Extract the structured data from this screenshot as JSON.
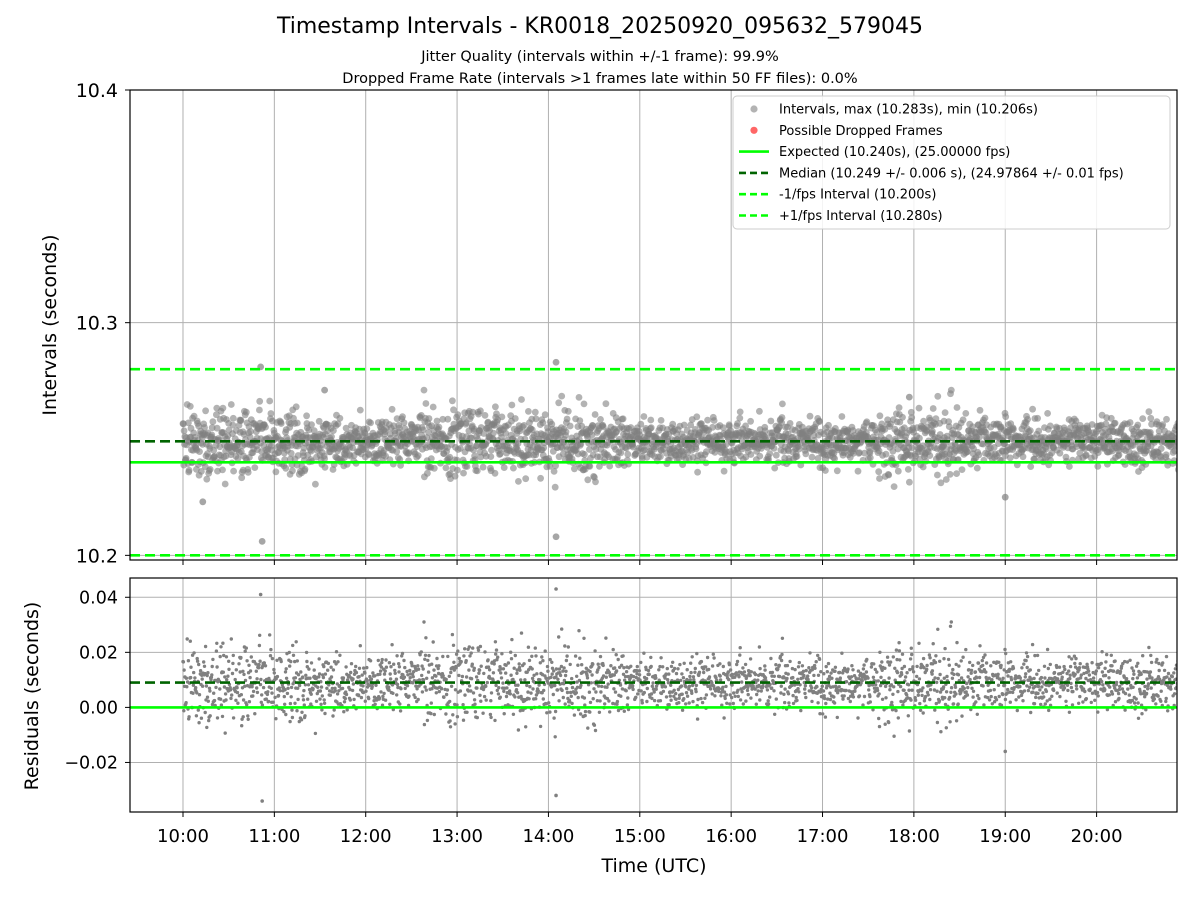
{
  "title": "Timestamp Intervals - KR0018_20250920_095632_579045",
  "subtitle_jitter": "Jitter Quality (intervals within +/-1 frame): 99.9%",
  "subtitle_dropped": "Dropped Frame Rate (intervals >1 frames late within 50 FF files): 0.0%",
  "colors": {
    "points": "#808080",
    "dropped": "#ff0000",
    "expected": "#00ff00",
    "median": "#006400",
    "bounds": "#00ff00",
    "grid": "#b0b0b0"
  },
  "chart_data": [
    {
      "type": "scatter",
      "ylabel": "Intervals (seconds)",
      "ylim": [
        10.198,
        10.4
      ],
      "yticks": [
        "10.2",
        "10.3",
        "10.4"
      ],
      "xlim_hours": [
        9.42,
        20.88
      ],
      "xtick_hours": [
        10,
        11,
        12,
        13,
        14,
        15,
        16,
        17,
        18,
        19,
        20
      ],
      "grid": true,
      "legend_position": "top-right",
      "legend": [
        "Intervals, max (10.283s), min (10.206s)",
        "Possible Dropped Frames",
        "Expected (10.240s), (25.00000 fps)",
        "Median (10.249 +/- 0.006 s), (24.97864 +/- 0.01 fps)",
        "-1/fps Interval (10.200s)",
        "+1/fps Interval (10.280s)"
      ],
      "lines": {
        "expected": 10.24,
        "median": 10.249,
        "lower": 10.2,
        "upper": 10.28
      },
      "series": [
        {
          "name": "Intervals, max (10.283s), min (10.206s)",
          "stats": {
            "max": 10.283,
            "min": 10.206,
            "median": 10.249,
            "std": 0.006,
            "x_start": "10:00",
            "x_end": "20:55"
          },
          "notable_points": [
            {
              "x": "10:51",
              "y": 10.281
            },
            {
              "x": "10:52",
              "y": 10.206
            },
            {
              "x": "14:05",
              "y": 10.283
            },
            {
              "x": "14:05",
              "y": 10.208
            },
            {
              "x": "10:13",
              "y": 10.223
            },
            {
              "x": "19:00",
              "y": 10.225
            },
            {
              "x": "11:33",
              "y": 10.271
            },
            {
              "x": "17:57",
              "y": 10.268
            }
          ]
        },
        {
          "name": "Possible Dropped Frames",
          "values": []
        }
      ]
    },
    {
      "type": "scatter",
      "xlabel": "Time (UTC)",
      "ylabel": "Residuals (seconds)",
      "ylim": [
        -0.038,
        0.047
      ],
      "yticks": [
        "−0.02",
        "0.00",
        "0.02",
        "0.04"
      ],
      "xticks": [
        "10:00",
        "11:00",
        "12:00",
        "13:00",
        "14:00",
        "15:00",
        "16:00",
        "17:00",
        "18:00",
        "19:00",
        "20:00"
      ],
      "lines": {
        "zero": 0.0,
        "median_offset": 0.009
      },
      "series": [
        {
          "name": "Residuals",
          "stats": {
            "max": 0.043,
            "min": -0.034
          },
          "notable_points": [
            {
              "x": "10:51",
              "y": 0.041
            },
            {
              "x": "10:52",
              "y": -0.034
            },
            {
              "x": "14:05",
              "y": 0.043
            },
            {
              "x": "14:05",
              "y": -0.032
            },
            {
              "x": "19:00",
              "y": -0.016
            }
          ]
        }
      ]
    }
  ]
}
